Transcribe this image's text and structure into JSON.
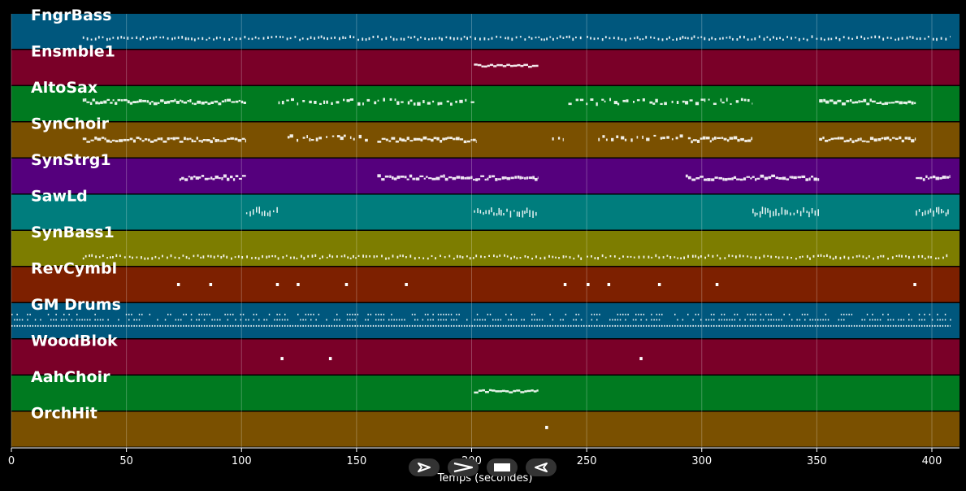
{
  "chart_data": {
    "type": "piano-roll",
    "title": "",
    "xlabel": "Temps (secondes)",
    "xlim": [
      0,
      412
    ],
    "xticks": [
      0,
      50,
      100,
      150,
      200,
      250,
      300,
      350,
      400
    ],
    "grid": true,
    "tracks": [
      {
        "name": "FngrBass",
        "color": "#00577d",
        "segments": [
          [
            31,
            248,
            0.7,
            "sparse"
          ],
          [
            250,
            408,
            0.7,
            "sparse"
          ]
        ]
      },
      {
        "name": "Ensmble1",
        "color": "#7a0028",
        "segments": [
          [
            201,
            229,
            0.45,
            "solid"
          ]
        ]
      },
      {
        "name": "AltoSax",
        "color": "#007a20",
        "segments": [
          [
            31,
            102,
            0.45,
            "dense"
          ],
          [
            116,
            202,
            0.45,
            "broken"
          ],
          [
            242,
            322,
            0.45,
            "broken"
          ],
          [
            351,
            393,
            0.45,
            "dense"
          ]
        ]
      },
      {
        "name": "SynChoir",
        "color": "#7a5000",
        "segments": [
          [
            31,
            102,
            0.5,
            "dense"
          ],
          [
            120,
            155,
            0.45,
            "broken"
          ],
          [
            159,
            202,
            0.5,
            "dense"
          ],
          [
            235,
            240,
            0.45,
            "broken"
          ],
          [
            255,
            293,
            0.45,
            "broken"
          ],
          [
            294,
            322,
            0.5,
            "dense"
          ],
          [
            351,
            393,
            0.5,
            "dense"
          ]
        ]
      },
      {
        "name": "SynStrg1",
        "color": "#55007d",
        "segments": [
          [
            73,
            102,
            0.55,
            "dense"
          ],
          [
            159,
            229,
            0.55,
            "dense"
          ],
          [
            293,
            351,
            0.55,
            "dense"
          ],
          [
            393,
            408,
            0.55,
            "dense"
          ]
        ]
      },
      {
        "name": "SawLd",
        "color": "#007d7d",
        "segments": [
          [
            102,
            116,
            0.5,
            "spiky"
          ],
          [
            201,
            229,
            0.5,
            "spiky"
          ],
          [
            322,
            351,
            0.5,
            "spiky"
          ],
          [
            393,
            408,
            0.5,
            "spiky"
          ]
        ]
      },
      {
        "name": "SynBass1",
        "color": "#7d7d00",
        "segments": [
          [
            31,
            248,
            0.75,
            "sparse"
          ],
          [
            250,
            408,
            0.75,
            "sparse"
          ]
        ]
      },
      {
        "name": "RevCymbl",
        "color": "#7d2000",
        "notes": [
          72,
          86,
          115,
          124,
          145,
          171,
          240,
          250,
          259,
          281,
          306,
          392
        ],
        "note_y": 0.5
      },
      {
        "name": "GM Drums",
        "color": "#00577d",
        "segments": [
          [
            0,
            408,
            0.65,
            "drums"
          ]
        ]
      },
      {
        "name": "WoodBlok",
        "color": "#7a0028",
        "notes": [
          117,
          138,
          273
        ],
        "note_y": 0.55
      },
      {
        "name": "AahChoir",
        "color": "#007a20",
        "segments": [
          [
            201,
            229,
            0.45,
            "solid"
          ]
        ]
      },
      {
        "name": "OrchHit",
        "color": "#7a5000",
        "notes": [
          232
        ],
        "note_y": 0.45
      }
    ]
  },
  "controls": {
    "buttons": [
      "play",
      "fast-forward",
      "stop",
      "rewind"
    ]
  }
}
